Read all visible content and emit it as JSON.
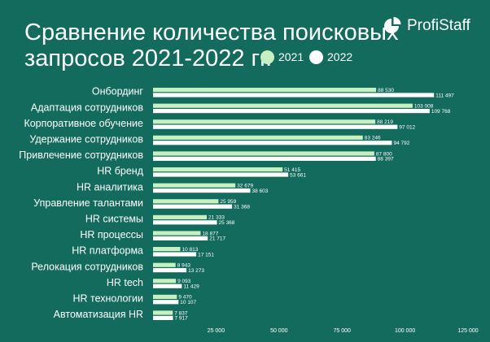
{
  "header": {
    "title_line1": "Сравнение количества поисковых",
    "title_line2": "запросов 2021-2022 гг.",
    "brand": "ProfiStaff",
    "logo_icon": "pie-chart-logo-icon"
  },
  "colors": {
    "background": "#136b5d",
    "series_2021": "#c7f0c0",
    "series_2022": "#ffffff",
    "text": "#ffffff"
  },
  "chart_data": {
    "type": "bar",
    "orientation": "horizontal",
    "title": "Сравнение количества поисковых запросов 2021-2022 гг.",
    "categories": [
      "Онбординг",
      "Адаптация сотрудников",
      "Корпоративное обучение",
      "Удержание сотрудников",
      "Привлечение сотрудников",
      "HR бренд",
      "HR аналитика",
      "Управление талантами",
      "HR системы",
      "HR процессы",
      "HR платформа",
      "Релокация сотрудников",
      "HR tech",
      "HR технологии",
      "Автоматизация HR"
    ],
    "series": [
      {
        "name": "2021",
        "values": [
          88530,
          103008,
          88219,
          83246,
          87800,
          51415,
          32679,
          25959,
          21333,
          18877,
          10813,
          8943,
          9093,
          9470,
          7837
        ],
        "labels": [
          "88 530",
          "103 008",
          "88 219",
          "83 246",
          "87 800",
          "51 415",
          "32 679",
          "25 959",
          "21 333",
          "18 877",
          "10 813",
          "8 943",
          "9 093",
          "9 470",
          "7 837"
        ]
      },
      {
        "name": "2022",
        "values": [
          111497,
          109768,
          97012,
          94792,
          88397,
          53661,
          38603,
          31368,
          25368,
          21717,
          17151,
          13273,
          11429,
          10107,
          7917
        ],
        "labels": [
          "111 497",
          "109 768",
          "97 012",
          "94 792",
          "88 397",
          "53 661",
          "38 603",
          "31 368",
          "25 368",
          "21 717",
          "17 151",
          "13 273",
          "11 429",
          "10 107",
          "7 917"
        ]
      }
    ],
    "xlim": [
      0,
      125000
    ],
    "xticks": [
      25000,
      50000,
      75000,
      100000,
      125000
    ],
    "xtick_labels": [
      "25 000",
      "50 000",
      "75 000",
      "100 000",
      "125 000"
    ],
    "legend_position": "top-right",
    "grid": false
  }
}
